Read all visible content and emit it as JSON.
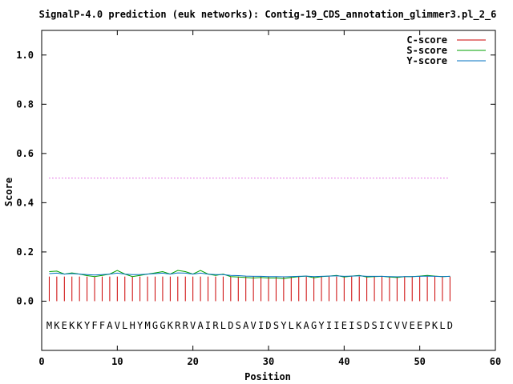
{
  "chart_data": {
    "type": "line",
    "title": "SignalP-4.0 prediction (euk networks): Contig-19_CDS_annotation_glimmer3.pl_2_6",
    "xlabel": "Position",
    "ylabel": "Score",
    "xlim": [
      0,
      60
    ],
    "ylim": [
      -0.2,
      1.1
    ],
    "xticks": [
      0,
      10,
      20,
      30,
      40,
      50,
      60
    ],
    "xtick_labels": [
      "0",
      "10",
      "20",
      "30",
      "40",
      "50",
      "60"
    ],
    "yticks": [
      0.0,
      0.2,
      0.4,
      0.6,
      0.8,
      1.0
    ],
    "ytick_labels": [
      "0.0",
      "0.2",
      "0.4",
      "0.6",
      "0.8",
      "1.0"
    ],
    "grid": false,
    "legend_position": "top-right",
    "threshold": {
      "value": 0.5,
      "x_range": [
        1,
        54
      ],
      "color": "#cc00cc"
    },
    "sequence": "MKEKKYFFAVLHYMGGKRRVAIRLDSAVIDSYLKAGYIIEISDSICVVEEPKLD",
    "sequence_y": -0.1,
    "series": [
      {
        "name": "C-score",
        "style": "impulse",
        "color": "#cc0000",
        "x": [
          1,
          2,
          3,
          4,
          5,
          6,
          7,
          8,
          9,
          10,
          11,
          12,
          13,
          14,
          15,
          16,
          17,
          18,
          19,
          20,
          21,
          22,
          23,
          24,
          25,
          26,
          27,
          28,
          29,
          30,
          31,
          32,
          33,
          34,
          35,
          36,
          37,
          38,
          39,
          40,
          41,
          42,
          43,
          44,
          45,
          46,
          47,
          48,
          49,
          50,
          51,
          52,
          53,
          54
        ],
        "values": [
          0.1,
          0.1,
          0.1,
          0.1,
          0.1,
          0.1,
          0.1,
          0.1,
          0.1,
          0.1,
          0.1,
          0.1,
          0.1,
          0.1,
          0.1,
          0.1,
          0.1,
          0.1,
          0.1,
          0.1,
          0.1,
          0.1,
          0.1,
          0.1,
          0.1,
          0.1,
          0.1,
          0.1,
          0.1,
          0.1,
          0.1,
          0.1,
          0.1,
          0.1,
          0.1,
          0.1,
          0.1,
          0.1,
          0.1,
          0.1,
          0.1,
          0.1,
          0.1,
          0.1,
          0.1,
          0.1,
          0.1,
          0.1,
          0.1,
          0.1,
          0.1,
          0.1,
          0.1,
          0.1
        ]
      },
      {
        "name": "S-score",
        "style": "line",
        "color": "#00a000",
        "x": [
          1,
          2,
          3,
          4,
          5,
          6,
          7,
          8,
          9,
          10,
          11,
          12,
          13,
          14,
          15,
          16,
          17,
          18,
          19,
          20,
          21,
          22,
          23,
          24,
          25,
          26,
          27,
          28,
          29,
          30,
          31,
          32,
          33,
          34,
          35,
          36,
          37,
          38,
          39,
          40,
          41,
          42,
          43,
          44,
          45,
          46,
          47,
          48,
          49,
          50,
          51,
          52,
          53,
          54
        ],
        "values": [
          0.12,
          0.122,
          0.11,
          0.115,
          0.11,
          0.104,
          0.1,
          0.105,
          0.11,
          0.125,
          0.11,
          0.1,
          0.105,
          0.11,
          0.115,
          0.12,
          0.11,
          0.125,
          0.12,
          0.11,
          0.125,
          0.11,
          0.105,
          0.11,
          0.1,
          0.098,
          0.096,
          0.094,
          0.096,
          0.094,
          0.094,
          0.092,
          0.096,
          0.1,
          0.102,
          0.095,
          0.1,
          0.102,
          0.105,
          0.098,
          0.102,
          0.105,
          0.098,
          0.1,
          0.101,
          0.098,
          0.096,
          0.1,
          0.1,
          0.102,
          0.105,
          0.102,
          0.1,
          0.101
        ]
      },
      {
        "name": "Y-score",
        "style": "line",
        "color": "#0070c0",
        "x": [
          1,
          2,
          3,
          4,
          5,
          6,
          7,
          8,
          9,
          10,
          11,
          12,
          13,
          14,
          15,
          16,
          17,
          18,
          19,
          20,
          21,
          22,
          23,
          24,
          25,
          26,
          27,
          28,
          29,
          30,
          31,
          32,
          33,
          34,
          35,
          36,
          37,
          38,
          39,
          40,
          41,
          42,
          43,
          44,
          45,
          46,
          47,
          48,
          49,
          50,
          51,
          52,
          53,
          54
        ],
        "values": [
          0.112,
          0.114,
          0.11,
          0.112,
          0.11,
          0.108,
          0.106,
          0.108,
          0.11,
          0.114,
          0.11,
          0.108,
          0.108,
          0.11,
          0.112,
          0.114,
          0.11,
          0.115,
          0.114,
          0.11,
          0.114,
          0.11,
          0.108,
          0.108,
          0.105,
          0.104,
          0.102,
          0.101,
          0.101,
          0.1,
          0.1,
          0.099,
          0.1,
          0.101,
          0.102,
          0.1,
          0.101,
          0.102,
          0.103,
          0.101,
          0.102,
          0.103,
          0.101,
          0.101,
          0.101,
          0.1,
          0.099,
          0.1,
          0.1,
          0.101,
          0.102,
          0.101,
          0.1,
          0.101
        ]
      }
    ]
  }
}
